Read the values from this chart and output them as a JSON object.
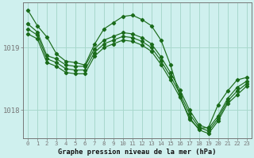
{
  "title": "Graphe pression niveau de la mer (hPa)",
  "background_color": "#cff0ee",
  "grid_color": "#a8d8cc",
  "line_color": "#1a6b1a",
  "x_labels": [
    "0",
    "1",
    "2",
    "3",
    "4",
    "5",
    "6",
    "7",
    "8",
    "9",
    "10",
    "11",
    "12",
    "13",
    "14",
    "15",
    "16",
    "17",
    "18",
    "19",
    "20",
    "21",
    "22",
    "23"
  ],
  "yticks": [
    1018,
    1019
  ],
  "ylim": [
    1017.55,
    1019.72
  ],
  "series": [
    [
      1019.6,
      1019.35,
      1019.17,
      1018.9,
      1018.78,
      1018.76,
      1018.72,
      1019.05,
      1019.3,
      1019.4,
      1019.5,
      1019.52,
      1019.45,
      1019.35,
      1019.12,
      1018.72,
      1018.22,
      1017.85,
      1017.7,
      1017.72,
      1018.08,
      1018.3,
      1018.48,
      1018.52
    ],
    [
      1019.38,
      1019.25,
      1018.87,
      1018.82,
      1018.72,
      1018.7,
      1018.7,
      1018.98,
      1019.12,
      1019.18,
      1019.24,
      1019.22,
      1019.16,
      1019.06,
      1018.85,
      1018.6,
      1018.32,
      1018.0,
      1017.76,
      1017.7,
      1017.9,
      1018.18,
      1018.36,
      1018.46
    ],
    [
      1019.3,
      1019.2,
      1018.82,
      1018.76,
      1018.66,
      1018.64,
      1018.64,
      1018.92,
      1019.06,
      1019.12,
      1019.18,
      1019.16,
      1019.1,
      1019.0,
      1018.79,
      1018.54,
      1018.26,
      1017.94,
      1017.72,
      1017.66,
      1017.86,
      1018.14,
      1018.3,
      1018.42
    ],
    [
      1019.22,
      1019.14,
      1018.76,
      1018.7,
      1018.6,
      1018.58,
      1018.58,
      1018.86,
      1019.0,
      1019.06,
      1019.12,
      1019.1,
      1019.04,
      1018.94,
      1018.73,
      1018.48,
      1018.2,
      1017.88,
      1017.68,
      1017.62,
      1017.82,
      1018.1,
      1018.24,
      1018.38
    ]
  ]
}
